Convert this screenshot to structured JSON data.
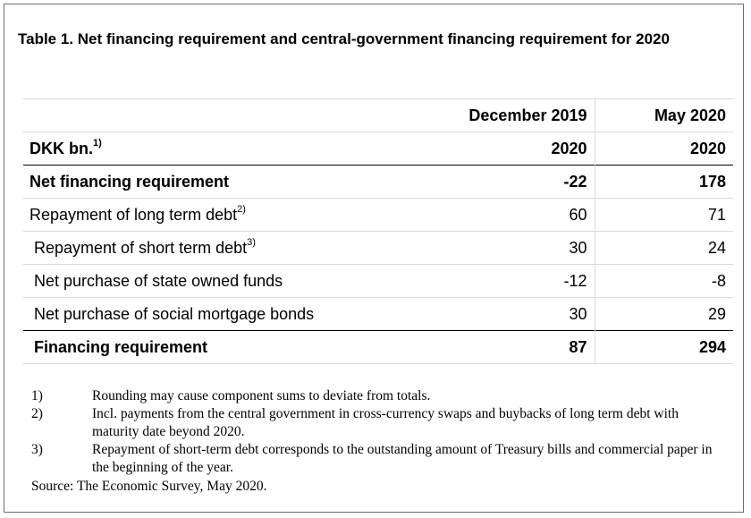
{
  "title": "Table 1. Net financing requirement and central-government financing requirement for 2020",
  "header": {
    "col1": "December 2019",
    "col2": "May 2020",
    "unit_label": "DKK bn.",
    "unit_sup": "1)",
    "year1": "2020",
    "year2": "2020"
  },
  "rows": [
    {
      "label": "Net financing requirement",
      "sup": "",
      "v1": "-22",
      "v2": "178"
    },
    {
      "label": "Repayment of long term debt",
      "sup": "2)",
      "v1": "60",
      "v2": "71"
    },
    {
      "label": "Repayment of short term debt",
      "sup": "3)",
      "v1": "30",
      "v2": "24"
    },
    {
      "label": "Net purchase of state owned funds",
      "sup": "",
      "v1": "-12",
      "v2": "-8"
    },
    {
      "label": "Net purchase of social mortgage bonds",
      "sup": "",
      "v1": "30",
      "v2": "29"
    },
    {
      "label": "Financing requirement",
      "sup": "",
      "v1": "87",
      "v2": "294"
    }
  ],
  "footnotes": [
    {
      "num": "1)",
      "text": "Rounding may cause component sums to deviate from totals."
    },
    {
      "num": "2)",
      "text": "Incl. payments from the central government in cross-currency swaps and buybacks of long term debt with maturity date beyond 2020."
    },
    {
      "num": "3)",
      "text": "Repayment of short-term debt corresponds to the outstanding amount of Treasury bills and commercial paper in the beginning of the year."
    }
  ],
  "source": "Source:  The Economic Survey, May 2020."
}
